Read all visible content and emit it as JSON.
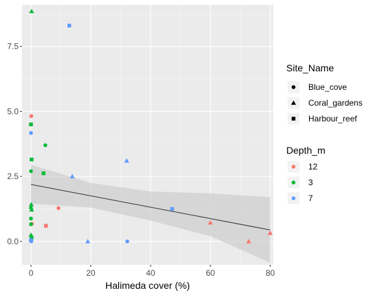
{
  "chart_data": {
    "type": "scatter",
    "title": "",
    "xlabel": "Halimeda cover (%)",
    "ylabel": "",
    "xlim": [
      -3,
      81
    ],
    "ylim": [
      -0.9,
      9.1
    ],
    "x_ticks": [
      0,
      20,
      40,
      60,
      80
    ],
    "x_tick_labels": [
      "0",
      "20",
      "40",
      "60",
      "80"
    ],
    "y_ticks": [
      0.0,
      2.5,
      5.0,
      7.5
    ],
    "y_tick_labels": [
      "0.0",
      "2.5",
      "5.0",
      "7.5"
    ],
    "grid": true,
    "panel_background": "#ebebeb",
    "legend_position": "right",
    "legends": [
      {
        "title": "Site_Name",
        "aesthetic": "shape",
        "entries": [
          {
            "label": "Blue_cove",
            "shape": "circle"
          },
          {
            "label": "Coral_gardens",
            "shape": "triangle"
          },
          {
            "label": "Harbour_reef",
            "shape": "square"
          }
        ]
      },
      {
        "title": "Depth_m",
        "aesthetic": "colour",
        "entries": [
          {
            "label": "12",
            "color": "#F8766D"
          },
          {
            "label": "3",
            "color": "#00BA38"
          },
          {
            "label": "7",
            "color": "#619CFF"
          }
        ]
      }
    ],
    "colors": {
      "12": "#F8766D",
      "3": "#00BA38",
      "7": "#619CFF"
    },
    "points": [
      {
        "x": 0.2,
        "y": 8.85,
        "site": "Coral_gardens",
        "depth": "3"
      },
      {
        "x": 12.8,
        "y": 8.3,
        "site": "Harbour_reef",
        "depth": "7"
      },
      {
        "x": 0.1,
        "y": 4.82,
        "site": "Blue_cove",
        "depth": "12"
      },
      {
        "x": 0.0,
        "y": 4.5,
        "site": "Harbour_reef",
        "depth": "3"
      },
      {
        "x": 0.0,
        "y": 4.17,
        "site": "Blue_cove",
        "depth": "7"
      },
      {
        "x": 4.8,
        "y": 3.7,
        "site": "Blue_cove",
        "depth": "3"
      },
      {
        "x": 0.2,
        "y": 3.15,
        "site": "Harbour_reef",
        "depth": "3"
      },
      {
        "x": 32.0,
        "y": 3.1,
        "site": "Coral_gardens",
        "depth": "7"
      },
      {
        "x": 0.0,
        "y": 2.7,
        "site": "Blue_cove",
        "depth": "3"
      },
      {
        "x": 4.2,
        "y": 2.62,
        "site": "Harbour_reef",
        "depth": "3"
      },
      {
        "x": 13.8,
        "y": 2.5,
        "site": "Coral_gardens",
        "depth": "7"
      },
      {
        "x": 0.1,
        "y": 1.42,
        "site": "Coral_gardens",
        "depth": "3"
      },
      {
        "x": 0.0,
        "y": 1.32,
        "site": "Coral_gardens",
        "depth": "3"
      },
      {
        "x": 0.2,
        "y": 1.22,
        "site": "Coral_gardens",
        "depth": "3"
      },
      {
        "x": 9.2,
        "y": 1.28,
        "site": "Blue_cove",
        "depth": "12"
      },
      {
        "x": 47.2,
        "y": 1.25,
        "site": "Harbour_reef",
        "depth": "7"
      },
      {
        "x": 0.0,
        "y": 0.88,
        "site": "Blue_cove",
        "depth": "3"
      },
      {
        "x": 60.0,
        "y": 0.72,
        "site": "Coral_gardens",
        "depth": "12"
      },
      {
        "x": 0.3,
        "y": 0.68,
        "site": "Blue_cove",
        "depth": "12"
      },
      {
        "x": 0.0,
        "y": 0.66,
        "site": "Blue_cove",
        "depth": "3"
      },
      {
        "x": 5.0,
        "y": 0.6,
        "site": "Harbour_reef",
        "depth": "12"
      },
      {
        "x": 80.0,
        "y": 0.32,
        "site": "Coral_gardens",
        "depth": "12"
      },
      {
        "x": 0.0,
        "y": 0.25,
        "site": "Coral_gardens",
        "depth": "3"
      },
      {
        "x": 0.2,
        "y": 0.15,
        "site": "Harbour_reef",
        "depth": "3"
      },
      {
        "x": 0.0,
        "y": 0.1,
        "site": "Coral_gardens",
        "depth": "3"
      },
      {
        "x": 0.0,
        "y": 0.05,
        "site": "Harbour_reef",
        "depth": "7"
      },
      {
        "x": 0.1,
        "y": 0.0,
        "site": "Blue_cove",
        "depth": "7"
      },
      {
        "x": 19.0,
        "y": 0.0,
        "site": "Coral_gardens",
        "depth": "7"
      },
      {
        "x": 32.2,
        "y": 0.0,
        "site": "Blue_cove",
        "depth": "7"
      },
      {
        "x": 72.8,
        "y": 0.0,
        "site": "Coral_gardens",
        "depth": "12"
      }
    ],
    "trend_line": {
      "x": [
        0,
        80
      ],
      "y": [
        2.19,
        0.44
      ],
      "color": "#333333",
      "ribbon": {
        "x": [
          0,
          20,
          40,
          60,
          80
        ],
        "upper": [
          2.95,
          2.25,
          1.92,
          1.85,
          1.7
        ],
        "lower": [
          1.45,
          1.3,
          0.8,
          0.2,
          -0.82
        ]
      },
      "ribbon_color": "#c8c8c8"
    }
  }
}
